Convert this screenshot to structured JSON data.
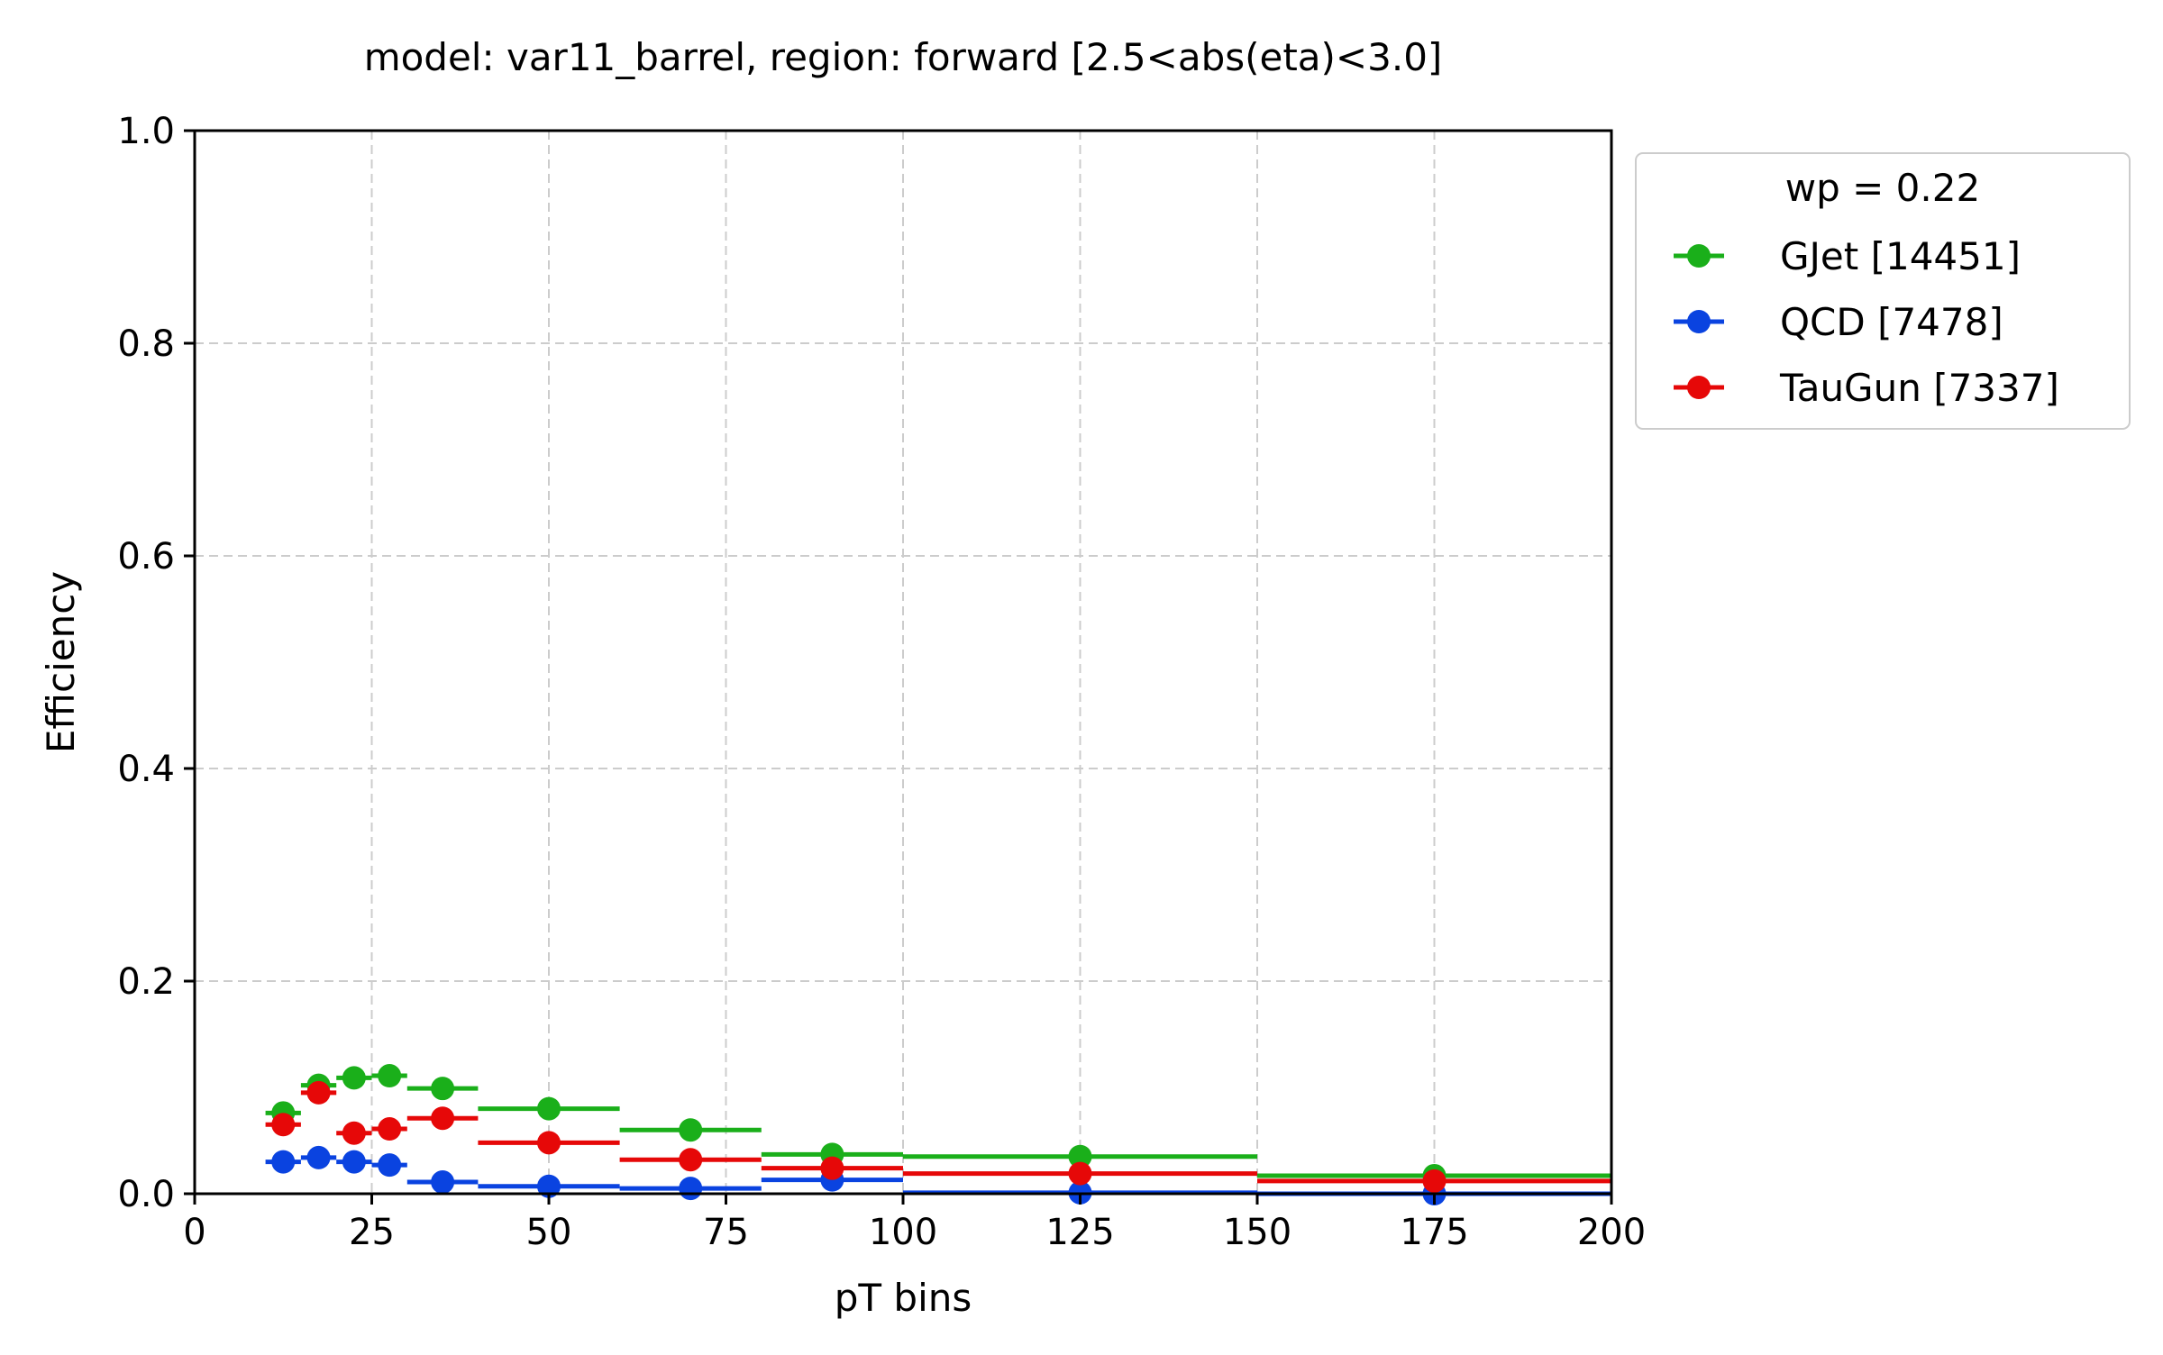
{
  "chart_data": {
    "type": "scatter",
    "title": "model: var11_barrel, region: forward [2.5<abs(eta)<3.0]",
    "xlabel": "pT bins",
    "ylabel": "Efficiency",
    "xlim": [
      0,
      200
    ],
    "ylim": [
      0,
      1.0
    ],
    "xticks": [
      "0",
      "25",
      "50",
      "75",
      "100",
      "125",
      "150",
      "175",
      "200"
    ],
    "yticks": [
      "0.0",
      "0.2",
      "0.4",
      "0.6",
      "0.8",
      "1.0"
    ],
    "grid": true,
    "legend": {
      "title": "wp = 0.22",
      "placement": "outside upper right"
    },
    "bins": [
      [
        10,
        15
      ],
      [
        15,
        20
      ],
      [
        20,
        25
      ],
      [
        25,
        30
      ],
      [
        30,
        40
      ],
      [
        40,
        60
      ],
      [
        60,
        80
      ],
      [
        80,
        100
      ],
      [
        100,
        150
      ],
      [
        150,
        200
      ]
    ],
    "x": [
      12.5,
      17.5,
      22.5,
      27.5,
      35,
      50,
      70,
      90,
      125,
      175
    ],
    "series": [
      {
        "name": "GJet [14451]",
        "color": "#1aaf1a",
        "values": [
          0.076,
          0.102,
          0.109,
          0.111,
          0.099,
          0.08,
          0.06,
          0.037,
          0.035,
          0.017
        ]
      },
      {
        "name": "QCD [7478]",
        "color": "#0a43e0",
        "values": [
          0.03,
          0.034,
          0.03,
          0.027,
          0.011,
          0.007,
          0.005,
          0.013,
          0.001,
          0.0
        ]
      },
      {
        "name": "TauGun [7337]",
        "color": "#e60808",
        "values": [
          0.065,
          0.095,
          0.057,
          0.061,
          0.071,
          0.048,
          0.032,
          0.024,
          0.019,
          0.012
        ]
      }
    ]
  }
}
